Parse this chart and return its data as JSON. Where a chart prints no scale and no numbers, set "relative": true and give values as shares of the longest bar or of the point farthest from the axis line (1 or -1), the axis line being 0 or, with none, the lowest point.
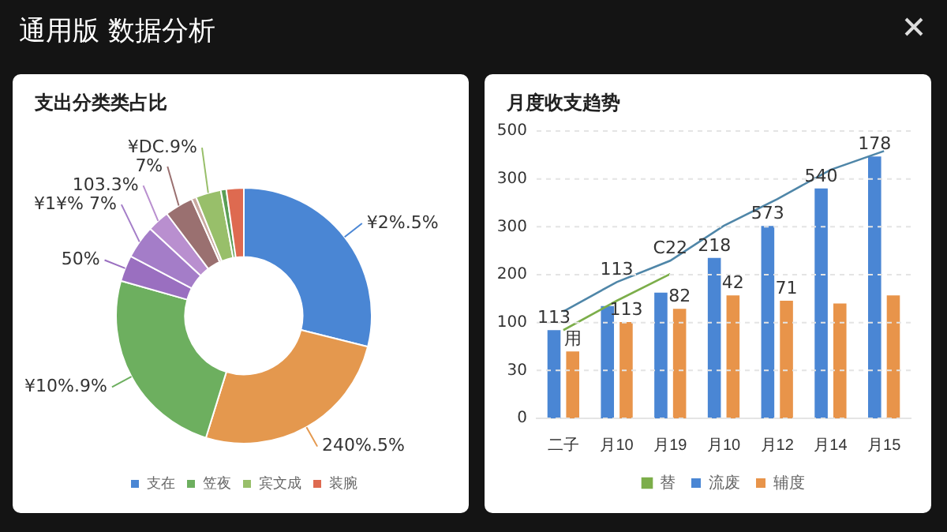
{
  "chart_data": [
    {
      "type": "donut",
      "title": "支出分类类占比",
      "annotations": [
        "通用版 数据分析",
        "¥2%.5%",
        "240%.5%",
        "¥10%.9%",
        "50%",
        "¥1¥% 7%",
        "103.3%",
        "7%",
        "¥DC.9%"
      ],
      "categories": [
        "支在",
        null,
        "笠夜",
        null,
        null,
        null,
        null,
        null,
        "宾文成",
        null,
        "装腕"
      ],
      "values": [
        28.9,
        25.9,
        24.6,
        3.3,
        4.2,
        2.8,
        3.6,
        0.6,
        3.2,
        0.7,
        2.2
      ],
      "colors": [
        "#4a86d4",
        "#e4984e",
        "#6daf5f",
        "#9a6fc0",
        "#a47dc8",
        "#b98fcf",
        "#9a7070",
        "#c9a9a0",
        "#98bf6a",
        "#5a9e55",
        "#de6a50"
      ],
      "legend": "bottom"
    },
    {
      "type": "bar",
      "title": "月度收支趋势",
      "relative": true,
      "categories": [
        "二子",
        "月10",
        "月19",
        "月10",
        "月12",
        "月14",
        "月15"
      ],
      "series": [
        {
          "name": "流废",
          "type": "bar",
          "color": "#4a86d4",
          "values": [
            0.33,
            0.42,
            0.47,
            0.6,
            0.72,
            0.86,
            0.98
          ]
        },
        {
          "name": "替",
          "type": "line",
          "color": "#7cae4a",
          "values": [
            0.33,
            0.44,
            0.54,
            null,
            null,
            null,
            null
          ]
        },
        {
          "name": "辅度",
          "type": "bar",
          "color": "#e8944a",
          "values": [
            0.25,
            0.36,
            0.41,
            0.46,
            0.44,
            0.43,
            0.46
          ]
        },
        {
          "type": "line",
          "color": "#4f86a8",
          "values": [
            0.4,
            0.51,
            0.59,
            0.72,
            0.82,
            0.93,
            1.0
          ]
        }
      ],
      "annotations": [
        "0",
        "30",
        "100",
        "200",
        "300",
        "300",
        "500",
        {
          "text": "113",
          "x": "二子",
          "y": 0.33
        },
        {
          "text": "用",
          "x": "二子",
          "y": 0.25
        },
        {
          "text": "113",
          "x": "月10",
          "y": 0.51
        },
        {
          "text": "113",
          "x": "月10",
          "y": 0.36
        },
        {
          "text": "C22",
          "x": "月19",
          "y": 0.59
        },
        {
          "text": "82",
          "x": "月19",
          "y": 0.41
        },
        {
          "text": "218",
          "y": 0.6
        },
        {
          "text": "42",
          "y": 0.46
        },
        {
          "text": "573",
          "x": "月12",
          "y": 0.72
        },
        {
          "text": "71",
          "x": "月12",
          "y": 0.44
        },
        {
          "text": "540",
          "x": "月14",
          "y": 0.86
        },
        {
          "text": "178",
          "x": "月15",
          "y": 0.98
        }
      ],
      "grid": "y",
      "legend": "bottom"
    }
  ]
}
